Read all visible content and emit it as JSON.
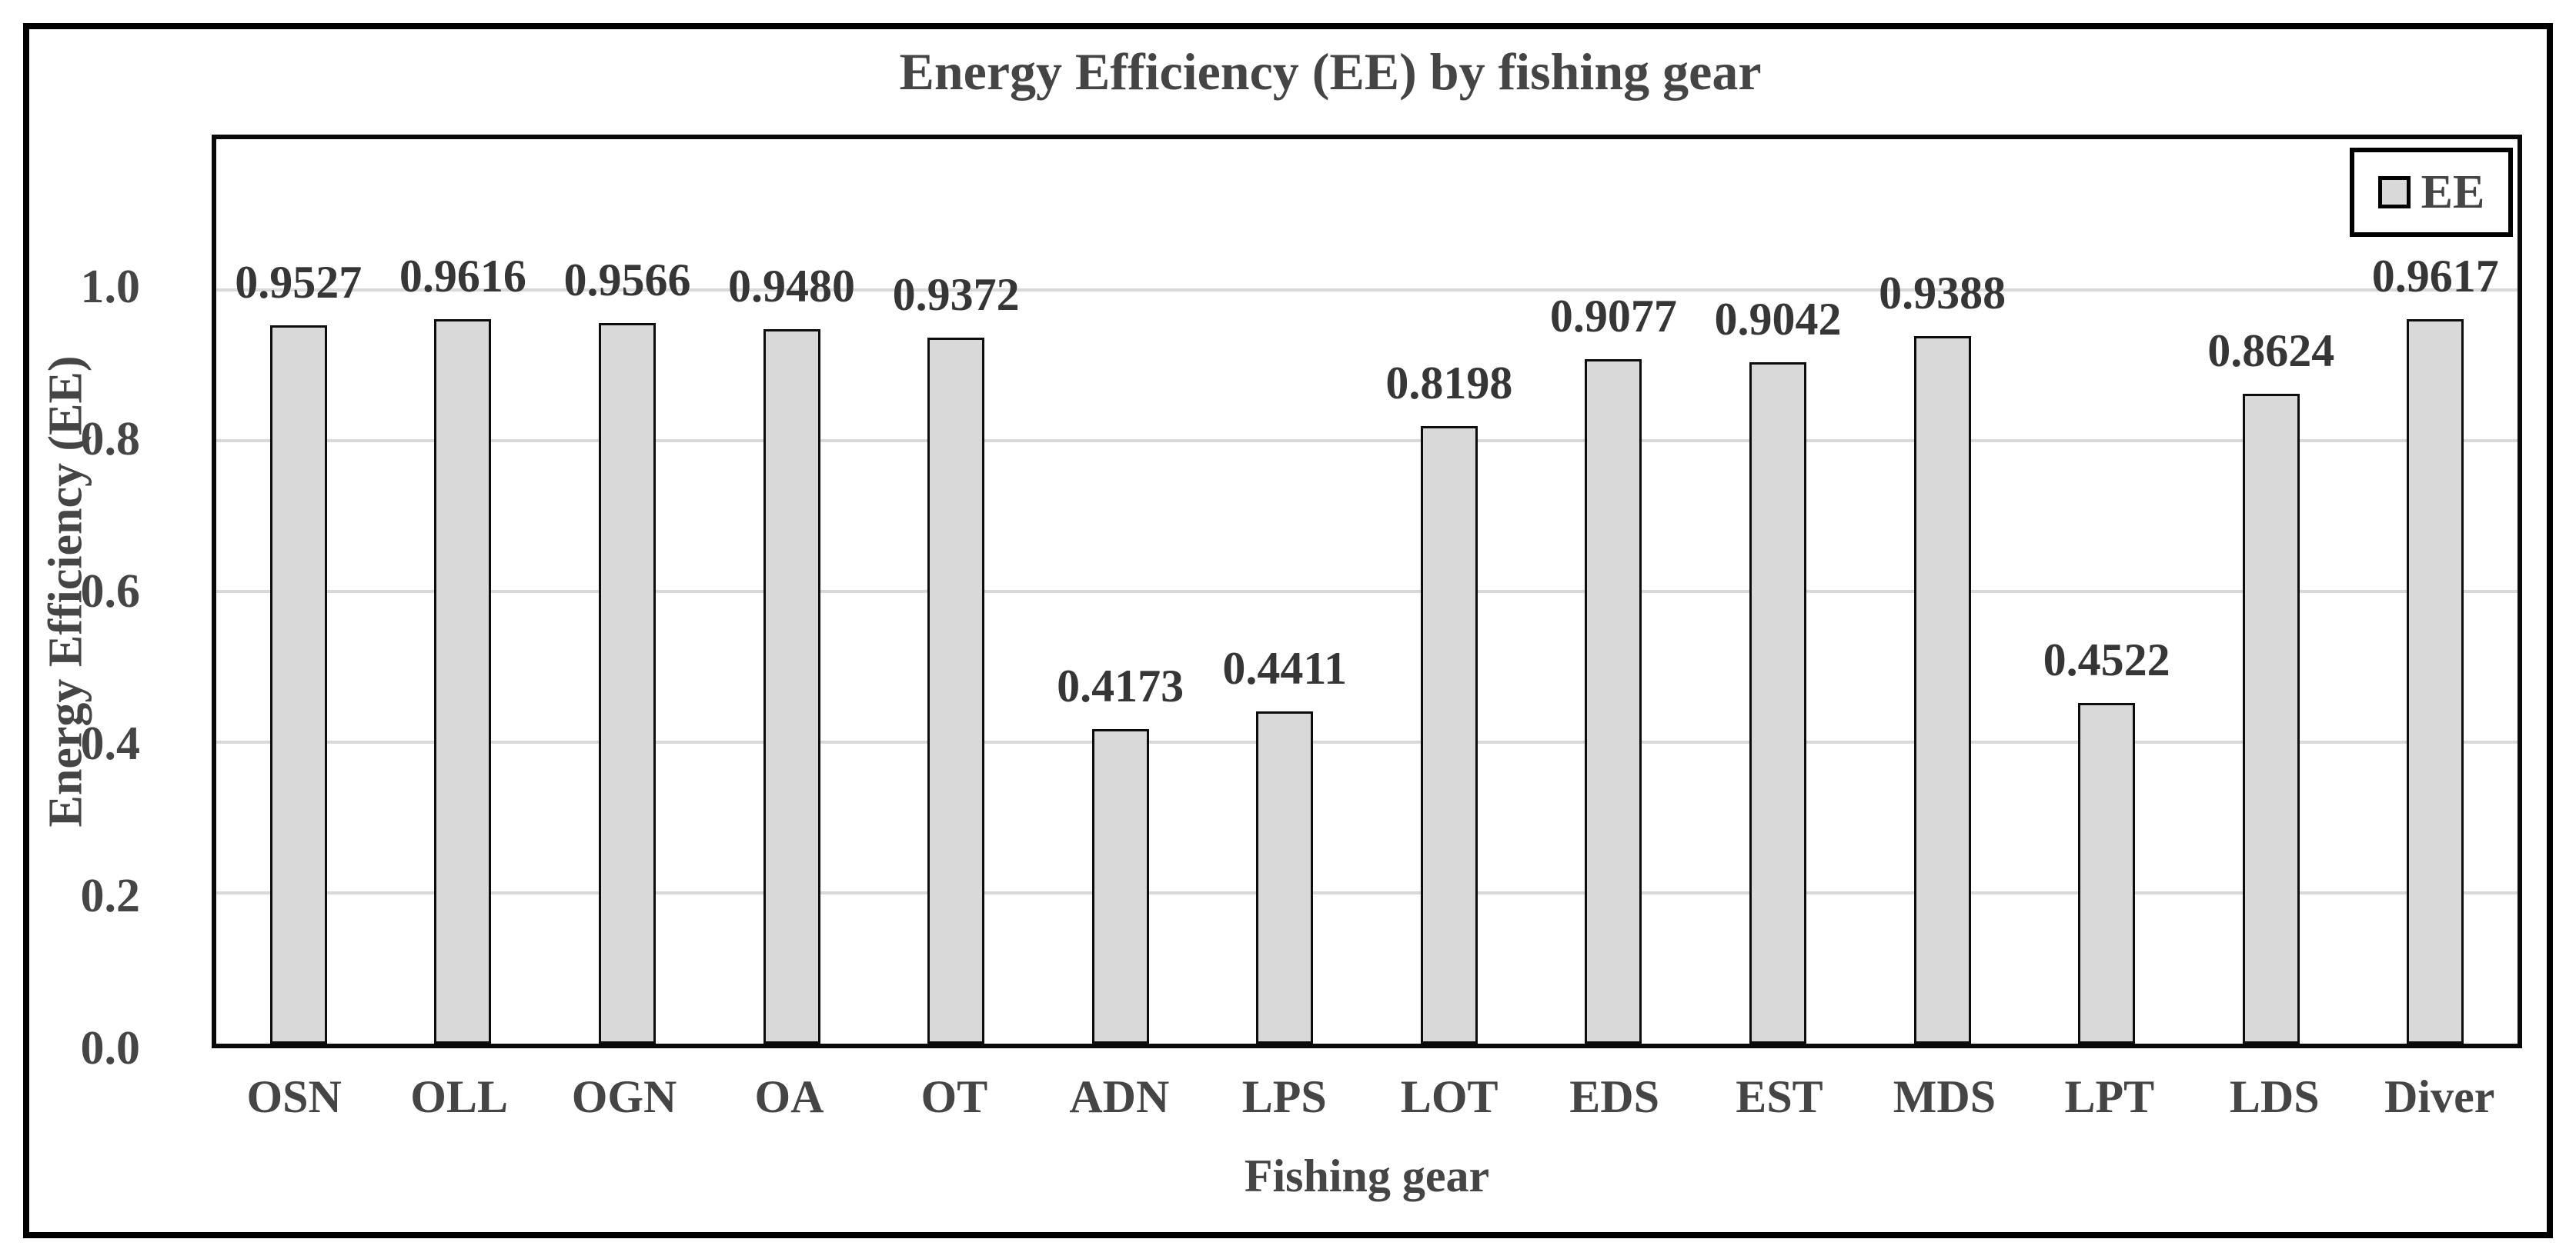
{
  "chart_data": {
    "type": "bar",
    "title": "Energy Efficiency (EE) by fishing gear",
    "xlabel": "Fishing gear",
    "ylabel": "Energy Efficiency (EE)",
    "legend": [
      "EE"
    ],
    "legend_position": "top-right",
    "categories": [
      "OSN",
      "OLL",
      "OGN",
      "OA",
      "OT",
      "ADN",
      "LPS",
      "LOT",
      "EDS",
      "EST",
      "MDS",
      "LPT",
      "LDS",
      "Diver"
    ],
    "values": [
      0.9527,
      0.9616,
      0.9566,
      0.948,
      0.9372,
      0.4173,
      0.4411,
      0.8198,
      0.9077,
      0.9042,
      0.9388,
      0.4522,
      0.8624,
      0.9617
    ],
    "value_label_decimals": 4,
    "value_labels": [
      "0.9527",
      "0.9616",
      "0.9566",
      "0.9480",
      "0.9372",
      "0.4173",
      "0.4411",
      "0.8198",
      "0.9077",
      "0.9042",
      "0.9388",
      "0.4522",
      "0.8624",
      "0.9617"
    ],
    "ylim": [
      0,
      1.2
    ],
    "ytick_step": 0.2,
    "yticks": [
      {
        "label": "0.0",
        "value": 0.0
      },
      {
        "label": "0.2",
        "value": 0.2
      },
      {
        "label": "0.4",
        "value": 0.4
      },
      {
        "label": "0.6",
        "value": 0.6
      },
      {
        "label": "0.8",
        "value": 0.8
      },
      {
        "label": "1.0",
        "value": 1.0
      }
    ],
    "grid": true,
    "colors": {
      "bar_fill": "#d9d9d9",
      "bar_border": "#0d0d0d",
      "text": "#454545",
      "value_label_text": "#363636",
      "gridline": "#d9d9d9",
      "plot_border": "#0a0a0a",
      "frame_border": "#000000",
      "background": "#ffffff"
    }
  }
}
